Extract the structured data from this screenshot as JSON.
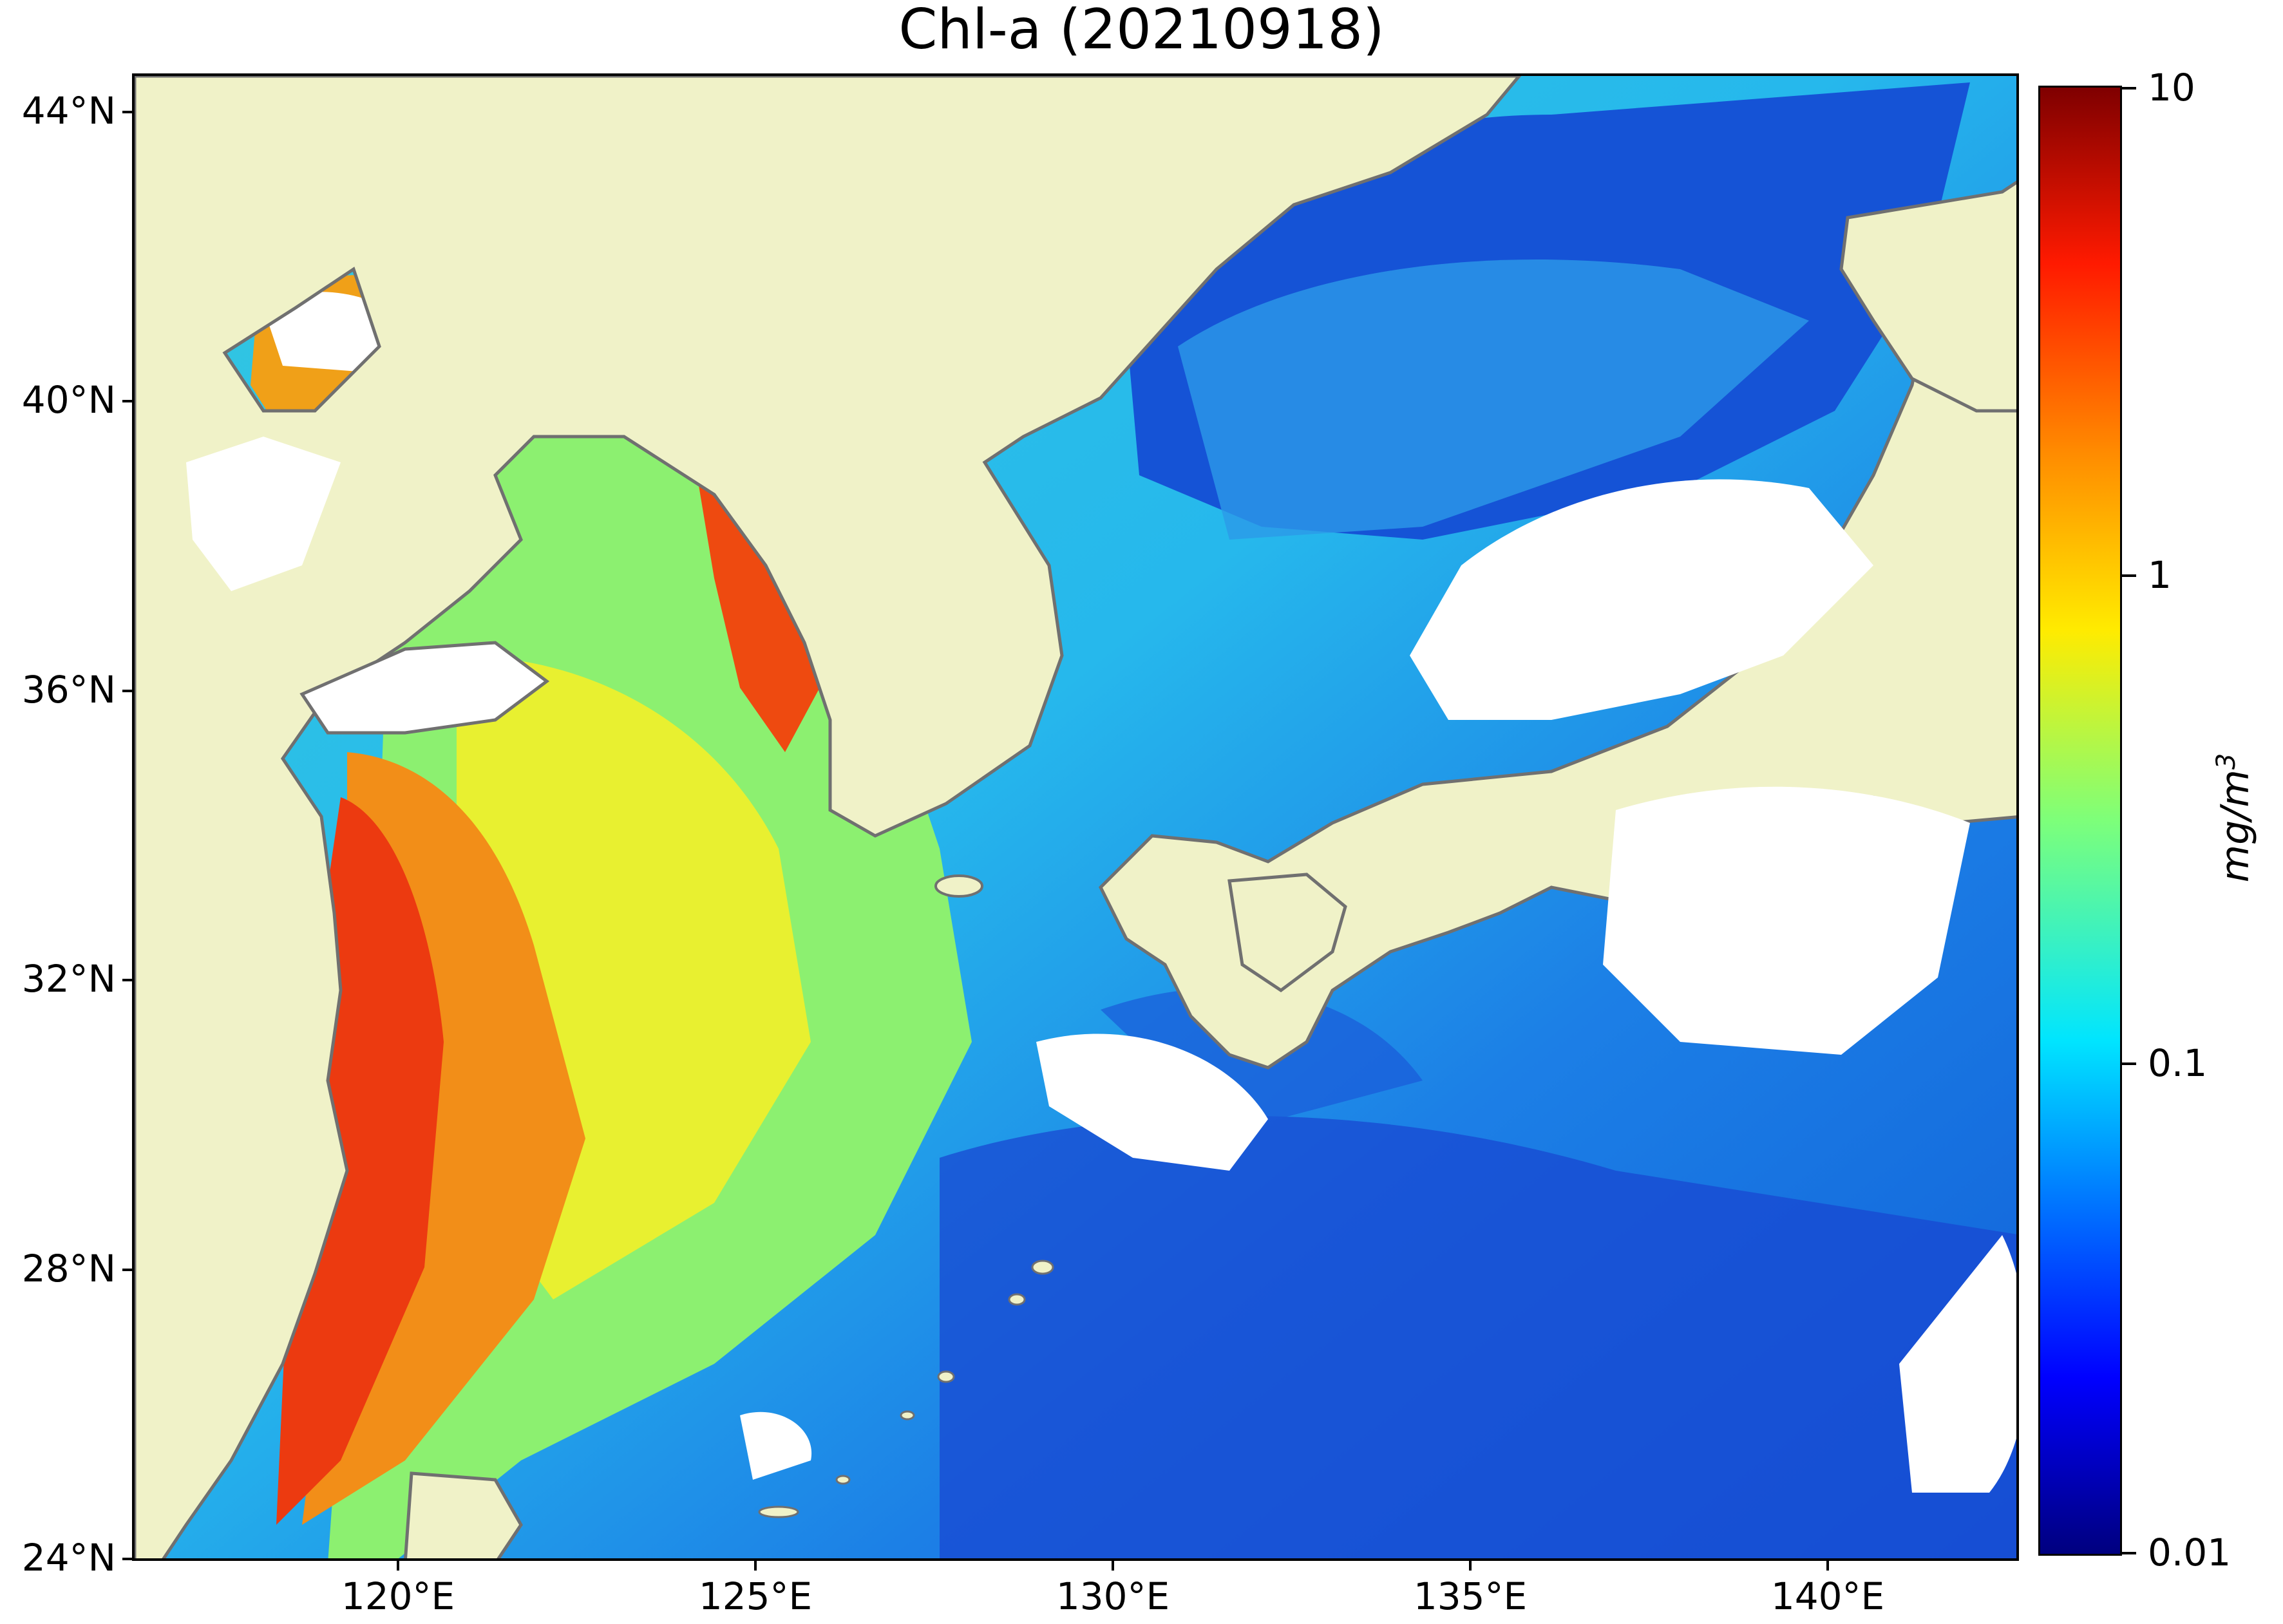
{
  "title": "Chl-a (20210918)",
  "map": {
    "lat_ticks": [
      "44°N",
      "40°N",
      "36°N",
      "32°N",
      "28°N",
      "24°N"
    ],
    "lon_ticks": [
      "120°E",
      "125°E",
      "130°E",
      "135°E",
      "140°E"
    ],
    "extent": {
      "lon_min": 116.8,
      "lon_max": 143.2,
      "lat_min": 24,
      "lat_max": 44.5
    }
  },
  "colorbar": {
    "scale": "log",
    "ticks": [
      "10",
      "1",
      "0.1",
      "0.01"
    ],
    "unit": "mg/m3",
    "min": 0.01,
    "max": 10
  },
  "colors": {
    "land": "#f0f2c8",
    "coastline": "#707070",
    "no_data": "#ffffff",
    "low": "#00007f",
    "high": "#7f0000"
  }
}
